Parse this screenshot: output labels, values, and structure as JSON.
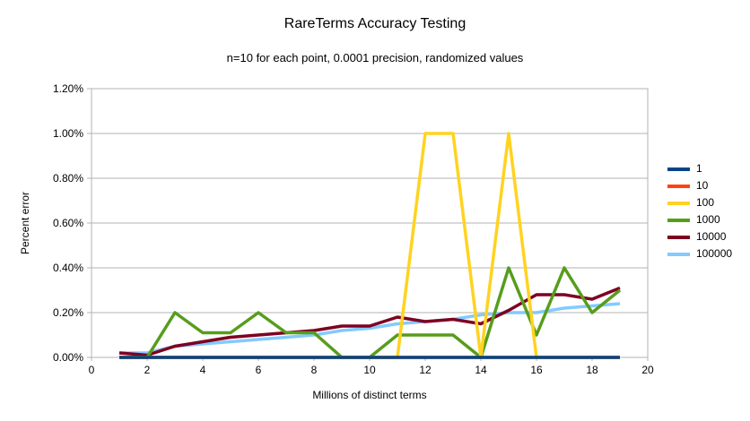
{
  "chart": {
    "title": "RareTerms Accuracy Testing",
    "subtitle": "n=10 for each point, 0.0001 precision, randomized values"
  },
  "chart_data": {
    "type": "line",
    "title": "RareTerms Accuracy Testing",
    "subtitle": "n=10 for each point, 0.0001 precision, randomized values",
    "xlabel": "Millions of distinct terms",
    "ylabel": "Percent error",
    "xlim": [
      0,
      20
    ],
    "ylim_percent": [
      0,
      1.2
    ],
    "grid": true,
    "legend_position": "right",
    "x_ticks": [
      "0",
      "2",
      "4",
      "6",
      "8",
      "10",
      "12",
      "14",
      "16",
      "18",
      "20"
    ],
    "x_tick_values": [
      0,
      2,
      4,
      6,
      8,
      10,
      12,
      14,
      16,
      18,
      20
    ],
    "y_ticks": [
      "0.00%",
      "0.20%",
      "0.40%",
      "0.60%",
      "0.80%",
      "1.00%",
      "1.20%"
    ],
    "y_tick_values": [
      0,
      0.2,
      0.4,
      0.6,
      0.8,
      1.0,
      1.2
    ],
    "x": [
      1,
      2,
      3,
      4,
      5,
      6,
      7,
      8,
      9,
      10,
      11,
      12,
      13,
      14,
      15,
      16,
      17,
      18,
      19
    ],
    "series": [
      {
        "name": "1",
        "color": "#004586",
        "values": [
          0,
          0,
          0,
          0,
          0,
          0,
          0,
          0,
          0,
          0,
          0,
          0,
          0,
          0,
          0,
          0,
          0,
          0,
          0
        ]
      },
      {
        "name": "10",
        "color": "#ff420e",
        "values": [
          0,
          0,
          0,
          0,
          0,
          0,
          0,
          0,
          0,
          0,
          0,
          0,
          0,
          0,
          0,
          0,
          0,
          0,
          0
        ]
      },
      {
        "name": "100",
        "color": "#ffd320",
        "values": [
          0,
          0,
          0,
          0,
          0,
          0,
          0,
          0,
          0,
          0,
          0,
          1.0,
          1.0,
          0,
          1.0,
          0,
          0,
          0,
          0
        ]
      },
      {
        "name": "1000",
        "color": "#579d1c",
        "values": [
          0,
          0,
          0.2,
          0.11,
          0.11,
          0.2,
          0.11,
          0.11,
          0,
          0,
          0.1,
          0.1,
          0.1,
          0,
          0.4,
          0.1,
          0.4,
          0.2,
          0.3
        ]
      },
      {
        "name": "10000",
        "color": "#7e0021",
        "values": [
          0.02,
          0.01,
          0.05,
          0.07,
          0.09,
          0.1,
          0.11,
          0.12,
          0.14,
          0.14,
          0.18,
          0.16,
          0.17,
          0.15,
          0.21,
          0.28,
          0.28,
          0.26,
          0.31
        ]
      },
      {
        "name": "100000",
        "color": "#83caff",
        "values": [
          0.02,
          0.02,
          0.05,
          0.06,
          0.07,
          0.08,
          0.09,
          0.1,
          0.12,
          0.13,
          0.15,
          0.16,
          0.17,
          0.19,
          0.2,
          0.2,
          0.22,
          0.23,
          0.24
        ]
      }
    ]
  },
  "style": {
    "grid_color": "#b3b3b3",
    "text_color": "#000000",
    "background": "#ffffff"
  }
}
